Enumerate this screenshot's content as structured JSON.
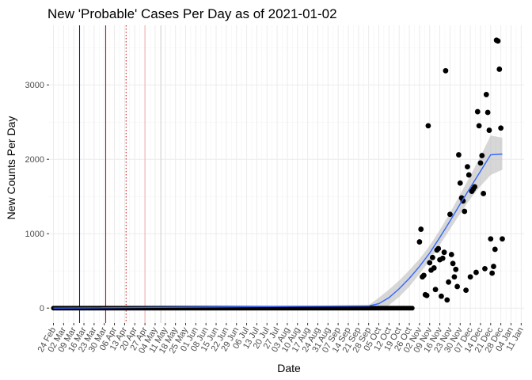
{
  "chart_data": {
    "type": "scatter",
    "title": "New 'Probable' Cases Per Day as of 2021-01-02",
    "xlabel": "Date",
    "ylabel": "New Counts Per Day",
    "ylim": [
      -200,
      3800
    ],
    "y_ticks": [
      0,
      1000,
      2000,
      3000
    ],
    "xlim": [
      "2020-02-21",
      "2021-01-13"
    ],
    "x_ticks": [
      {
        "date": "2020-02-24",
        "label": "24 Feb"
      },
      {
        "date": "2020-03-02",
        "label": "02 Mar"
      },
      {
        "date": "2020-03-09",
        "label": "09 Mar"
      },
      {
        "date": "2020-03-16",
        "label": "16 Mar"
      },
      {
        "date": "2020-03-23",
        "label": "23 Mar"
      },
      {
        "date": "2020-03-30",
        "label": "30 Mar"
      },
      {
        "date": "2020-04-06",
        "label": "06 Apr"
      },
      {
        "date": "2020-04-13",
        "label": "13 Apr"
      },
      {
        "date": "2020-04-20",
        "label": "20 Apr"
      },
      {
        "date": "2020-04-27",
        "label": "27 Apr"
      },
      {
        "date": "2020-05-04",
        "label": "04 May"
      },
      {
        "date": "2020-05-11",
        "label": "11 May"
      },
      {
        "date": "2020-05-18",
        "label": "18 May"
      },
      {
        "date": "2020-05-25",
        "label": "25 May"
      },
      {
        "date": "2020-06-01",
        "label": "01 Jun"
      },
      {
        "date": "2020-06-08",
        "label": "08 Jun"
      },
      {
        "date": "2020-06-15",
        "label": "15 Jun"
      },
      {
        "date": "2020-06-22",
        "label": "22 Jun"
      },
      {
        "date": "2020-06-29",
        "label": "29 Jun"
      },
      {
        "date": "2020-07-06",
        "label": "06 Jul"
      },
      {
        "date": "2020-07-13",
        "label": "13 Jul"
      },
      {
        "date": "2020-07-20",
        "label": "20 Jul"
      },
      {
        "date": "2020-07-27",
        "label": "27 Jul"
      },
      {
        "date": "2020-08-03",
        "label": "03 Aug"
      },
      {
        "date": "2020-08-10",
        "label": "10 Aug"
      },
      {
        "date": "2020-08-17",
        "label": "17 Aug"
      },
      {
        "date": "2020-08-24",
        "label": "24 Aug"
      },
      {
        "date": "2020-08-31",
        "label": "31 Aug"
      },
      {
        "date": "2020-09-07",
        "label": "07 Sep"
      },
      {
        "date": "2020-09-14",
        "label": "14 Sep"
      },
      {
        "date": "2020-09-21",
        "label": "21 Sep"
      },
      {
        "date": "2020-09-28",
        "label": "28 Sep"
      },
      {
        "date": "2020-10-05",
        "label": "05 Oct"
      },
      {
        "date": "2020-10-12",
        "label": "12 Oct"
      },
      {
        "date": "2020-10-19",
        "label": "19 Oct"
      },
      {
        "date": "2020-10-26",
        "label": "26 Oct"
      },
      {
        "date": "2020-11-02",
        "label": "02 Nov"
      },
      {
        "date": "2020-11-09",
        "label": "09 Nov"
      },
      {
        "date": "2020-11-16",
        "label": "16 Nov"
      },
      {
        "date": "2020-11-23",
        "label": "23 Nov"
      },
      {
        "date": "2020-11-30",
        "label": "30 Nov"
      },
      {
        "date": "2020-12-07",
        "label": "07 Dec"
      },
      {
        "date": "2020-12-14",
        "label": "14 Dec"
      },
      {
        "date": "2020-12-21",
        "label": "21 Dec"
      },
      {
        "date": "2020-12-28",
        "label": "28 Dec"
      },
      {
        "date": "2021-01-04",
        "label": "04 Jan"
      },
      {
        "date": "2021-01-11",
        "label": "11 Jan"
      }
    ],
    "grid": true,
    "reference_lines": [
      {
        "date": "2020-03-13",
        "color": "#0000ff",
        "style": "solid"
      },
      {
        "date": "2020-03-31",
        "color": "#cc0000",
        "style": "solid"
      },
      {
        "date": "2020-04-14",
        "color": "#cc0000",
        "style": "dotted"
      },
      {
        "date": "2020-04-27",
        "color": "#f4a7a7",
        "style": "solid"
      },
      {
        "date": "2020-05-08",
        "color": "#d0d0d0",
        "style": "solid"
      }
    ],
    "zero_series": {
      "start": "2020-02-24",
      "end": "2020-10-28",
      "value": 0
    },
    "points": [
      [
        "2020-11-02",
        890
      ],
      [
        "2020-11-03",
        1060
      ],
      [
        "2020-11-04",
        420
      ],
      [
        "2020-11-05",
        440
      ],
      [
        "2020-11-06",
        180
      ],
      [
        "2020-11-07",
        170
      ],
      [
        "2020-11-08",
        2450
      ],
      [
        "2020-11-09",
        610
      ],
      [
        "2020-11-10",
        510
      ],
      [
        "2020-11-11",
        680
      ],
      [
        "2020-11-12",
        540
      ],
      [
        "2020-11-13",
        250
      ],
      [
        "2020-11-14",
        780
      ],
      [
        "2020-11-15",
        800
      ],
      [
        "2020-11-16",
        650
      ],
      [
        "2020-11-17",
        160
      ],
      [
        "2020-11-18",
        670
      ],
      [
        "2020-11-19",
        750
      ],
      [
        "2020-11-20",
        3190
      ],
      [
        "2020-11-21",
        110
      ],
      [
        "2020-11-22",
        350
      ],
      [
        "2020-11-23",
        1260
      ],
      [
        "2020-11-24",
        720
      ],
      [
        "2020-11-25",
        600
      ],
      [
        "2020-11-26",
        420
      ],
      [
        "2020-11-27",
        520
      ],
      [
        "2020-11-28",
        290
      ],
      [
        "2020-11-29",
        2060
      ],
      [
        "2020-11-30",
        1680
      ],
      [
        "2020-12-01",
        1480
      ],
      [
        "2020-12-02",
        1440
      ],
      [
        "2020-12-03",
        1300
      ],
      [
        "2020-12-04",
        240
      ],
      [
        "2020-12-05",
        1900
      ],
      [
        "2020-12-06",
        1790
      ],
      [
        "2020-12-07",
        420
      ],
      [
        "2020-12-08",
        1570
      ],
      [
        "2020-12-09",
        1600
      ],
      [
        "2020-12-10",
        1630
      ],
      [
        "2020-12-11",
        480
      ],
      [
        "2020-12-12",
        2640
      ],
      [
        "2020-12-13",
        2450
      ],
      [
        "2020-12-14",
        1950
      ],
      [
        "2020-12-15",
        2050
      ],
      [
        "2020-12-16",
        1540
      ],
      [
        "2020-12-17",
        530
      ],
      [
        "2020-12-18",
        2870
      ],
      [
        "2020-12-19",
        2630
      ],
      [
        "2020-12-20",
        2390
      ],
      [
        "2020-12-21",
        930
      ],
      [
        "2020-12-22",
        470
      ],
      [
        "2020-12-23",
        560
      ],
      [
        "2020-12-24",
        790
      ],
      [
        "2020-12-25",
        3600
      ],
      [
        "2020-12-26",
        3590
      ],
      [
        "2020-12-27",
        3210
      ],
      [
        "2020-12-28",
        2420
      ],
      [
        "2020-12-29",
        930
      ]
    ],
    "trend": {
      "color": "#3366ff",
      "band_color": "#bdbdbd",
      "points": [
        [
          "2020-02-24",
          0,
          -8,
          8
        ],
        [
          "2020-09-28",
          30,
          20,
          40
        ],
        [
          "2020-10-05",
          60,
          -20,
          140
        ],
        [
          "2020-10-12",
          140,
          40,
          250
        ],
        [
          "2020-10-19",
          260,
          150,
          370
        ],
        [
          "2020-10-26",
          400,
          290,
          510
        ],
        [
          "2020-11-02",
          560,
          460,
          660
        ],
        [
          "2020-11-09",
          740,
          640,
          840
        ],
        [
          "2020-11-16",
          950,
          850,
          1050
        ],
        [
          "2020-11-23",
          1170,
          1060,
          1280
        ],
        [
          "2020-11-30",
          1400,
          1270,
          1530
        ],
        [
          "2020-12-07",
          1620,
          1470,
          1780
        ],
        [
          "2020-12-14",
          1840,
          1640,
          2040
        ],
        [
          "2020-12-21",
          2060,
          1790,
          2320
        ],
        [
          "2020-12-29",
          2070,
          1860,
          2290
        ]
      ]
    }
  }
}
